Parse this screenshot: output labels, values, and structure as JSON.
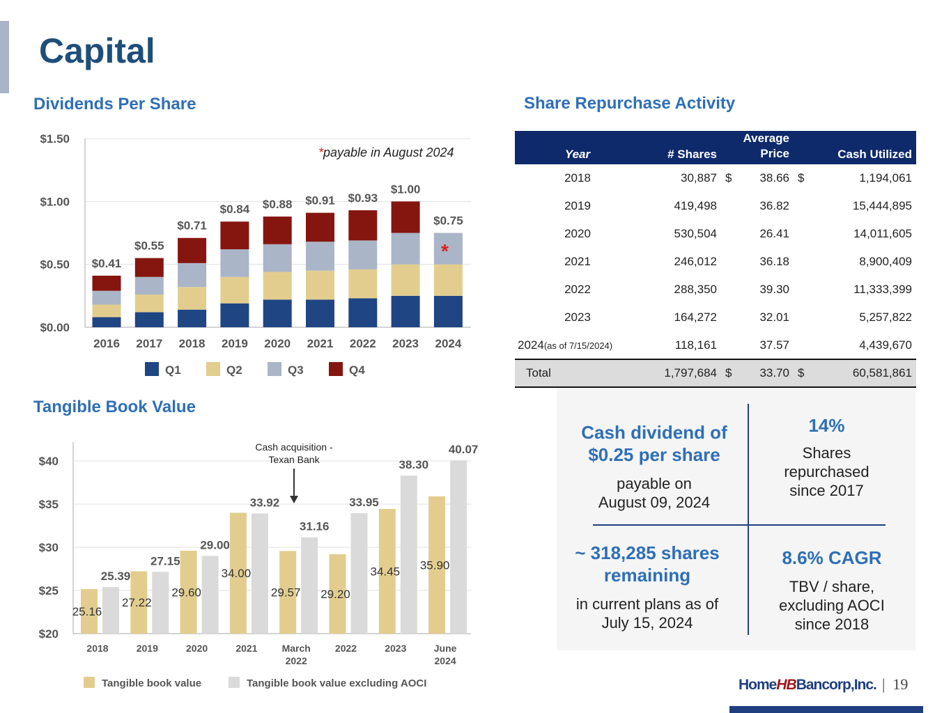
{
  "title": "Capital",
  "page_number": "19",
  "logo_text": "Home HB Bancorp, Inc.",
  "colors": {
    "q1": "#1f4583",
    "q2": "#e3cd8e",
    "q3": "#aab5c8",
    "q4": "#85160f",
    "tbv": "#e3cd8e",
    "tbv_ex": "#dadada",
    "accent": "#2e6fb7",
    "table_header": "#0f2a6b"
  },
  "dividends": {
    "heading": "Dividends Per Share",
    "note_star": "*",
    "note": "payable in August 2024"
  },
  "tbv": {
    "heading": "Tangible Book Value",
    "annotation": "Cash acquisition - Texan Bank"
  },
  "chart_data": [
    {
      "type": "bar",
      "stacked": true,
      "categories": [
        "2016",
        "2017",
        "2018",
        "2019",
        "2020",
        "2021",
        "2022",
        "2023",
        "2024"
      ],
      "series": [
        {
          "name": "Q1",
          "values": [
            0.08,
            0.12,
            0.14,
            0.19,
            0.22,
            0.22,
            0.23,
            0.25,
            0.25
          ]
        },
        {
          "name": "Q2",
          "values": [
            0.1,
            0.14,
            0.18,
            0.21,
            0.22,
            0.23,
            0.23,
            0.25,
            0.25
          ]
        },
        {
          "name": "Q3",
          "values": [
            0.11,
            0.14,
            0.19,
            0.22,
            0.22,
            0.23,
            0.23,
            0.25,
            0.25
          ]
        },
        {
          "name": "Q4",
          "values": [
            0.12,
            0.15,
            0.2,
            0.22,
            0.22,
            0.23,
            0.24,
            0.25,
            null
          ]
        }
      ],
      "totals_labels": [
        "$0.41",
        "$0.55",
        "$0.71",
        "$0.84",
        "$0.88",
        "$0.91",
        "$0.93",
        "$1.00",
        "$0.75"
      ],
      "yticks": [
        "$0.00",
        "$0.50",
        "$1.00",
        "$1.50"
      ],
      "ylim": [
        0,
        1.5
      ],
      "grid": true,
      "legend": "bottom"
    },
    {
      "type": "bar",
      "categories": [
        "2018",
        "2019",
        "2020",
        "2021",
        "March 2022",
        "2022",
        "2023",
        "June 2024"
      ],
      "series": [
        {
          "name": "Tangible book value",
          "values": [
            25.16,
            27.22,
            29.6,
            34.0,
            29.57,
            29.2,
            34.45,
            35.9
          ]
        },
        {
          "name": "Tangible book value excluding AOCI",
          "values": [
            25.39,
            27.15,
            29.0,
            33.92,
            31.16,
            33.95,
            38.3,
            40.07
          ]
        }
      ],
      "yticks": [
        "$20",
        "$25",
        "$30",
        "$35",
        "$40"
      ],
      "ylim": [
        20,
        40
      ],
      "grid": true,
      "legend": "bottom"
    }
  ],
  "repurchase": {
    "heading": "Share Repurchase Activity",
    "headers": [
      "Year",
      "# Shares",
      "Average Price",
      "Cash Utilized"
    ],
    "rows": [
      [
        "2018",
        "30,887",
        "$",
        "38.66",
        "$",
        "1,194,061"
      ],
      [
        "2019",
        "419,498",
        "",
        "36.82",
        "",
        "15,444,895"
      ],
      [
        "2020",
        "530,504",
        "",
        "26.41",
        "",
        "14,011,605"
      ],
      [
        "2021",
        "246,012",
        "",
        "36.18",
        "",
        "8,900,409"
      ],
      [
        "2022",
        "288,350",
        "",
        "39.30",
        "",
        "11,333,399"
      ],
      [
        "2023",
        "164,272",
        "",
        "32.01",
        "",
        "5,257,822"
      ],
      [
        "2024",
        "118,161",
        "",
        "37.57",
        "",
        "4,439,670"
      ]
    ],
    "row_2024_note": "(as of 7/15/2024)",
    "total": [
      "Total",
      "1,797,684",
      "$",
      "33.70",
      "$",
      "60,581,861"
    ]
  },
  "highlights": [
    {
      "big": "Cash dividend of $0.25 per share",
      "small": "payable on August 09, 2024"
    },
    {
      "big": "14%",
      "small": "Shares repurchased since 2017"
    },
    {
      "big": "~ 318,285 shares remaining",
      "small": "in current plans as of July 15, 2024"
    },
    {
      "big": "8.6% CAGR",
      "small": "TBV / share, excluding AOCI since 2018"
    }
  ]
}
